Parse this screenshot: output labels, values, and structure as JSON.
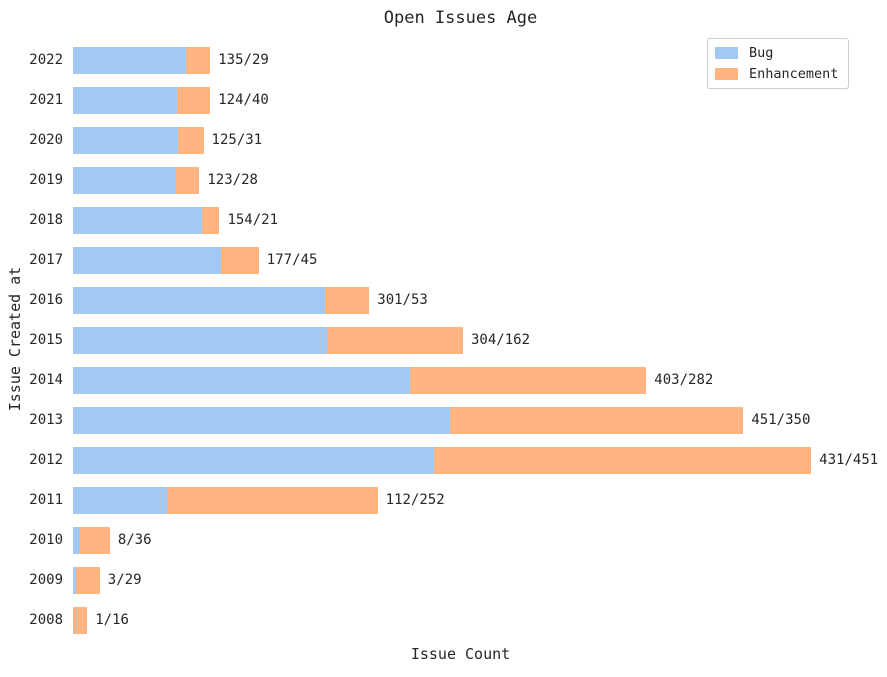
{
  "title": "Open Issues Age",
  "axes": {
    "xlabel": "Issue Count",
    "ylabel": "Issue Created at"
  },
  "legend": {
    "items": [
      "Bug",
      "Enhancement"
    ],
    "position": "upper right"
  },
  "colors": {
    "bug": "#a1c9f4",
    "enhancement": "#ffb482",
    "text": "#262626",
    "legend_border": "#cccccc",
    "background": "#ffffff"
  },
  "chart_data": {
    "type": "bar",
    "orientation": "horizontal",
    "stacked": true,
    "title": "Open Issues Age",
    "xlabel": "Issue Count",
    "ylabel": "Issue Created at",
    "grid": false,
    "legend_position": "upper right",
    "xlim": [
      0,
      926
    ],
    "categories": [
      "2022",
      "2021",
      "2020",
      "2019",
      "2018",
      "2017",
      "2016",
      "2015",
      "2014",
      "2013",
      "2012",
      "2011",
      "2010",
      "2009",
      "2008"
    ],
    "series": [
      {
        "name": "Bug",
        "color": "#a1c9f4",
        "values": [
          135,
          124,
          125,
          123,
          154,
          177,
          301,
          304,
          403,
          451,
          431,
          112,
          8,
          3,
          1
        ]
      },
      {
        "name": "Enhancement",
        "color": "#ffb482",
        "values": [
          29,
          40,
          31,
          28,
          21,
          45,
          53,
          162,
          282,
          350,
          451,
          252,
          36,
          29,
          16
        ]
      }
    ],
    "bar_labels": [
      "135/29",
      "124/40",
      "125/31",
      "123/28",
      "154/21",
      "177/45",
      "301/53",
      "304/162",
      "403/282",
      "451/350",
      "431/451",
      "112/252",
      "8/36",
      "3/29",
      "1/16"
    ]
  }
}
